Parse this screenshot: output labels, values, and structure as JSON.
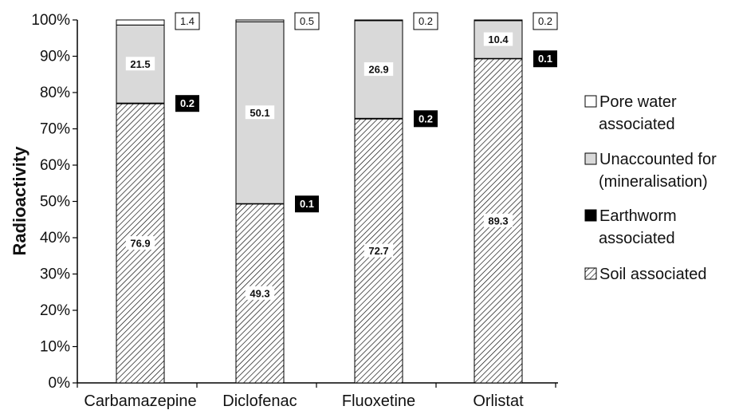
{
  "chart_data": {
    "type": "bar",
    "stacked": true,
    "ylabel": "Radioactivity",
    "xlabel": "",
    "ylim": [
      0,
      100
    ],
    "y_ticks": [
      "0%",
      "10%",
      "20%",
      "30%",
      "40%",
      "50%",
      "60%",
      "70%",
      "80%",
      "90%",
      "100%"
    ],
    "categories": [
      "Carbamazepine",
      "Diclofenac",
      "Fluoxetine",
      "Orlistat"
    ],
    "series": [
      {
        "name": "Soil associated",
        "fill": "hatch",
        "values": [
          76.9,
          49.3,
          72.7,
          89.3
        ]
      },
      {
        "name": "Earthworm associated",
        "fill": "#000000",
        "values": [
          0.2,
          0.1,
          0.2,
          0.1
        ]
      },
      {
        "name": "Unaccounted for (mineralisation)",
        "fill": "#d9d9d9",
        "values": [
          21.5,
          50.1,
          26.9,
          10.4
        ]
      },
      {
        "name": "Pore water associated",
        "fill": "#ffffff",
        "values": [
          1.4,
          0.5,
          0.2,
          0.2
        ]
      }
    ],
    "legend": {
      "position": "right",
      "entries": [
        {
          "lines": [
            "Pore water",
            "associated"
          ],
          "fill": "#ffffff"
        },
        {
          "lines": [
            "Unaccounted for",
            "(mineralisation)"
          ],
          "fill": "#d9d9d9"
        },
        {
          "lines": [
            "Earthworm",
            "associated"
          ],
          "fill": "#000000"
        },
        {
          "lines": [
            "Soil associated"
          ],
          "fill": "hatch"
        }
      ]
    },
    "grid": false
  }
}
